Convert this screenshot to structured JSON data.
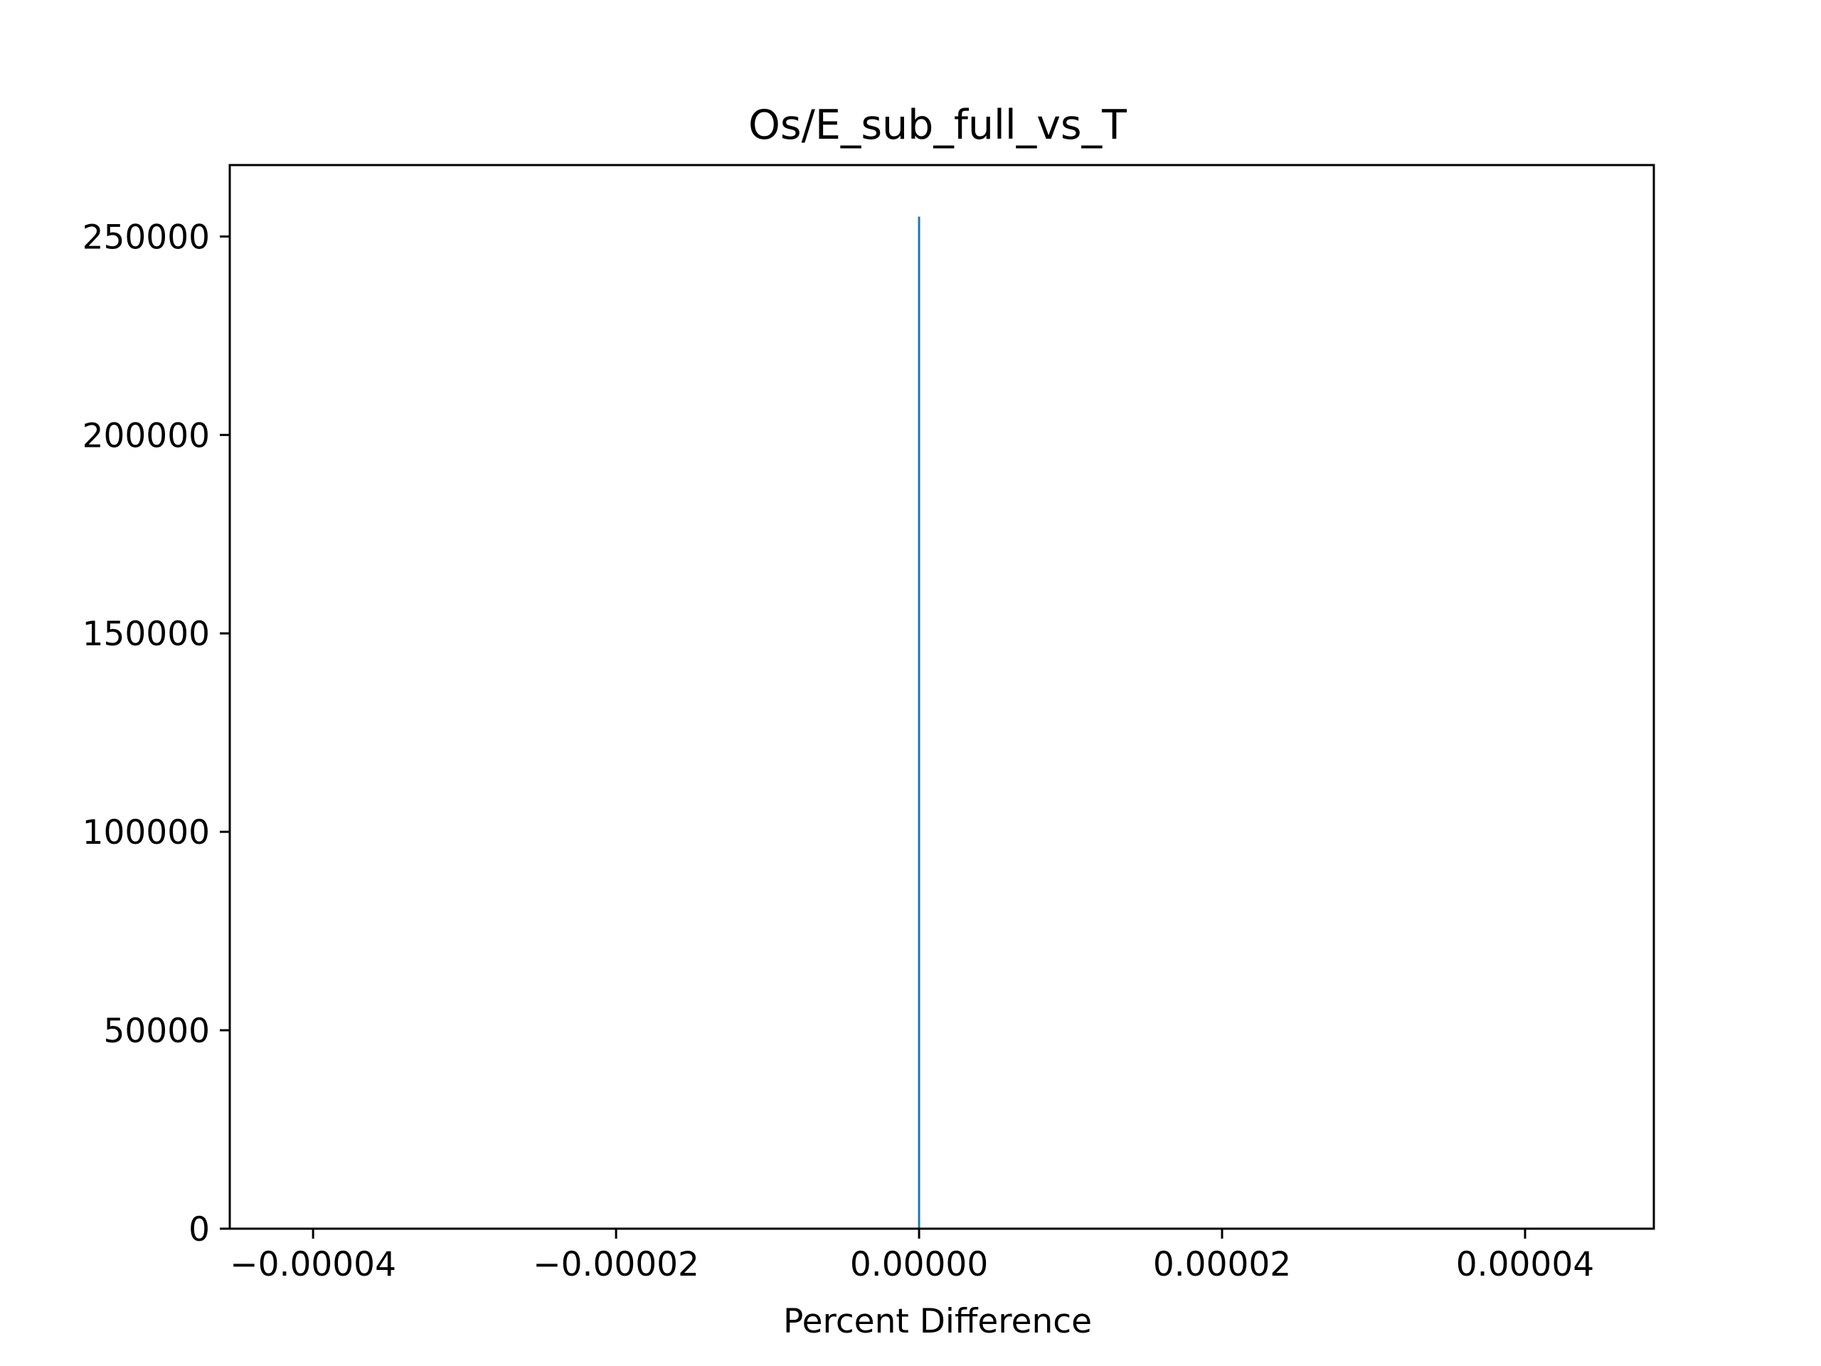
{
  "chart_data": {
    "type": "bar",
    "title": "Os/E_sub_full_vs_T",
    "xlabel": "Percent Difference",
    "ylabel": "",
    "xlim": [
      -4.55e-05,
      4.85e-05
    ],
    "ylim": [
      0,
      268000
    ],
    "x_ticks": [
      {
        "value": -4e-05,
        "label": "−0.00004"
      },
      {
        "value": -2e-05,
        "label": "−0.00002"
      },
      {
        "value": 0.0,
        "label": "0.00000"
      },
      {
        "value": 2e-05,
        "label": "0.00002"
      },
      {
        "value": 4e-05,
        "label": "0.00004"
      }
    ],
    "y_ticks": [
      {
        "value": 0,
        "label": "0"
      },
      {
        "value": 50000,
        "label": "50000"
      },
      {
        "value": 100000,
        "label": "100000"
      },
      {
        "value": 150000,
        "label": "150000"
      },
      {
        "value": 200000,
        "label": "200000"
      },
      {
        "value": 250000,
        "label": "250000"
      }
    ],
    "bars": [
      {
        "x": 0.0,
        "count": 255000
      }
    ],
    "bar_color": "#1f77b4",
    "grid": false,
    "legend": "none"
  }
}
